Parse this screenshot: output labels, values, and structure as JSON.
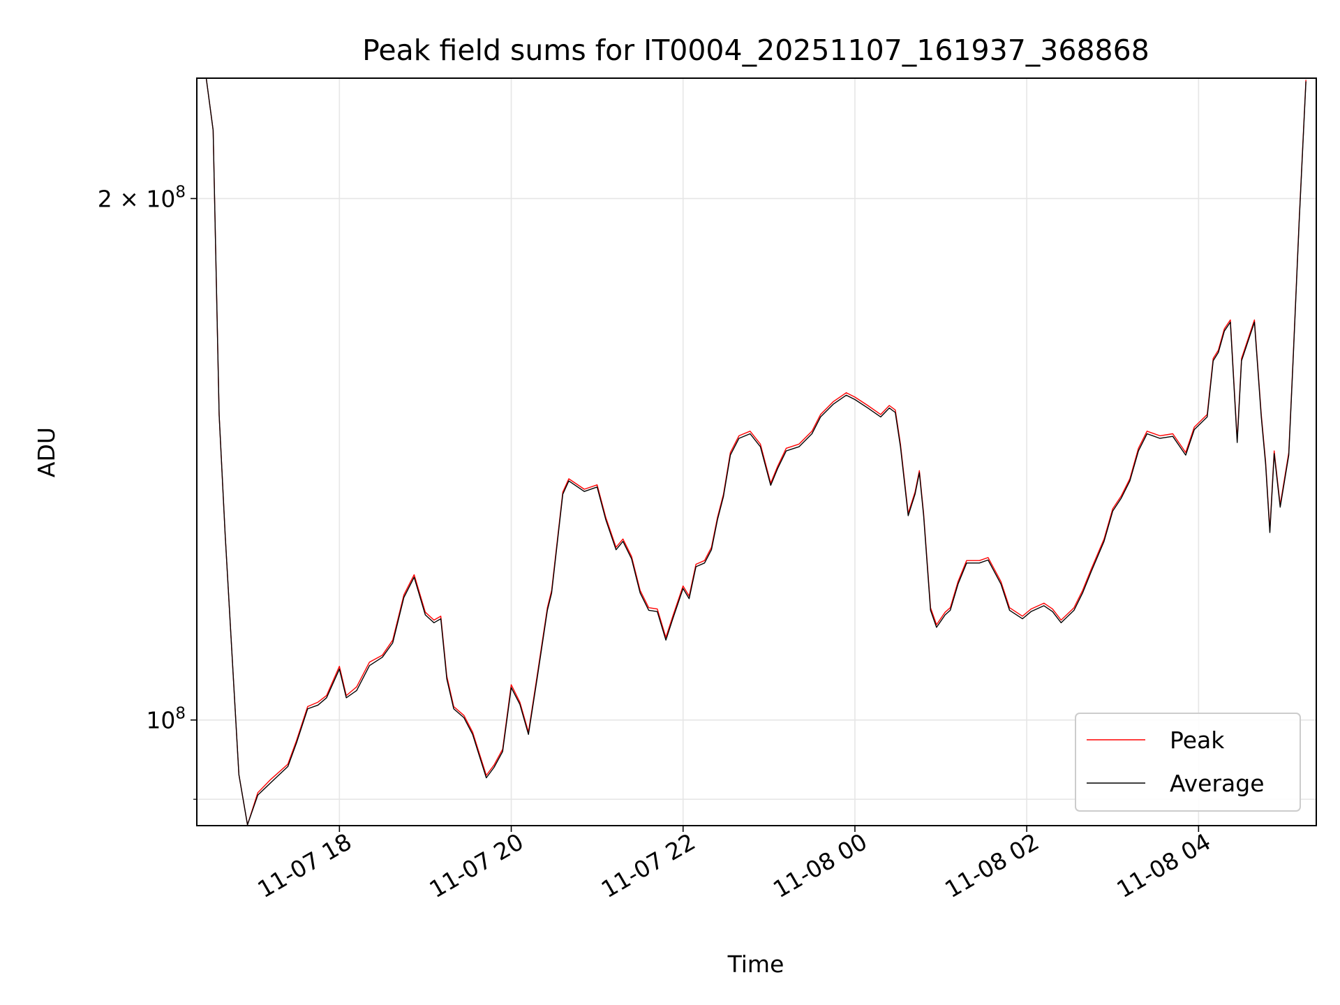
{
  "chart_data": {
    "type": "line",
    "title": "Peak field sums for IT0004_20251107_161937_368868",
    "xlabel": "Time",
    "ylabel": "ADU",
    "x_units": "hours since 11-07 00:00",
    "y_units": "millions of ADU",
    "y_scale": "log",
    "xlim": [
      16.34,
      29.37
    ],
    "ylim": [
      86.9,
      234.7
    ],
    "grid": true,
    "legend_position": "bottom-right",
    "x_ticks": [
      {
        "value": 18,
        "label": "11-07 18"
      },
      {
        "value": 20,
        "label": "11-07 20"
      },
      {
        "value": 22,
        "label": "11-07 22"
      },
      {
        "value": 24,
        "label": "11-08 00"
      },
      {
        "value": 26,
        "label": "11-08 02"
      },
      {
        "value": 28,
        "label": "11-08 04"
      }
    ],
    "y_ticks": [
      {
        "value": 200,
        "label_base": "2 × 10",
        "label_exp": "8"
      },
      {
        "value": 100,
        "label_base": "10",
        "label_exp": "8"
      }
    ],
    "y_minor_ticks": [
      90
    ],
    "x": [
      16.45,
      16.53,
      16.6,
      16.67,
      16.75,
      16.83,
      16.93,
      17.05,
      17.2,
      17.4,
      17.5,
      17.63,
      17.75,
      17.85,
      18.0,
      18.08,
      18.2,
      18.35,
      18.5,
      18.62,
      18.75,
      18.87,
      19.0,
      19.1,
      19.18,
      19.25,
      19.33,
      19.45,
      19.55,
      19.63,
      19.71,
      19.8,
      19.9,
      20.0,
      20.1,
      20.2,
      20.3,
      20.42,
      20.47,
      20.6,
      20.67,
      20.85,
      21.0,
      21.1,
      21.22,
      21.3,
      21.4,
      21.5,
      21.6,
      21.7,
      21.8,
      21.88,
      22.0,
      22.07,
      22.15,
      22.25,
      22.33,
      22.4,
      22.47,
      22.55,
      22.65,
      22.78,
      22.9,
      23.02,
      23.1,
      23.2,
      23.35,
      23.5,
      23.6,
      23.75,
      23.9,
      24.0,
      24.15,
      24.3,
      24.4,
      24.47,
      24.53,
      24.62,
      24.7,
      24.75,
      24.8,
      24.88,
      24.95,
      25.05,
      25.11,
      25.2,
      25.3,
      25.45,
      25.55,
      25.7,
      25.8,
      25.95,
      26.05,
      26.2,
      26.3,
      26.4,
      26.55,
      26.65,
      26.75,
      26.9,
      27.0,
      27.1,
      27.2,
      27.3,
      27.4,
      27.55,
      27.7,
      27.85,
      27.95,
      28.1,
      28.17,
      28.23,
      28.3,
      28.37,
      28.45,
      28.5,
      28.6,
      28.65,
      28.73,
      28.78,
      28.83,
      28.88,
      28.95,
      29.05,
      29.1,
      29.17,
      29.25
    ],
    "series": [
      {
        "name": "Peak",
        "color": "#ff0000",
        "values": [
          234.7,
          219,
          150,
          128,
          109,
          93,
          87,
          90.8,
          92.4,
          94.3,
          97.3,
          101.8,
          102.4,
          103.3,
          107.4,
          103.3,
          104.5,
          108,
          109,
          111.2,
          118.1,
          121.3,
          115.4,
          114.2,
          114.8,
          106,
          101.8,
          100.6,
          98.4,
          95.6,
          92.9,
          94.2,
          96.2,
          104.8,
          102.4,
          98.4,
          106,
          116.1,
          118.8,
          135.4,
          137.8,
          135.9,
          136.7,
          130.9,
          125.8,
          127.2,
          124.3,
          118.8,
          116.1,
          115.9,
          111.6,
          114.8,
          119.5,
          117.9,
          123,
          123.6,
          125.8,
          130.9,
          135,
          142.7,
          145.9,
          146.8,
          144.3,
          137,
          140.1,
          143.5,
          144.3,
          146.8,
          150.1,
          152.7,
          154.5,
          153.6,
          151.9,
          150.1,
          151.9,
          151,
          144.3,
          131.6,
          135.4,
          139.3,
          131.6,
          116.1,
          113.5,
          115.4,
          116.1,
          120.2,
          123.6,
          123.6,
          124.1,
          120.2,
          116.1,
          114.8,
          115.9,
          116.8,
          115.9,
          114.2,
          116.1,
          118.8,
          122.2,
          127.2,
          132.4,
          134.7,
          137.8,
          143.5,
          146.8,
          145.9,
          146.3,
          142.7,
          147.6,
          150.1,
          161.7,
          163.5,
          168.2,
          170.2,
          145.1,
          161.7,
          167.3,
          170.2,
          150.1,
          141,
          128.7,
          143,
          133.1,
          142.7,
          161.7,
          194,
          234.2
        ]
      },
      {
        "name": "Average",
        "color": "#000000",
        "values": [
          234.7,
          219,
          150,
          128,
          109,
          93,
          87,
          90.5,
          92,
          94,
          97,
          101.5,
          102,
          103,
          107,
          103,
          104,
          107.5,
          108.7,
          110.8,
          117.7,
          120.9,
          115,
          113.8,
          114.4,
          105.6,
          101.5,
          100.3,
          98.1,
          95.3,
          92.6,
          93.9,
          95.9,
          104.4,
          102.1,
          98.1,
          105.6,
          115.7,
          118.4,
          135,
          137.4,
          135.5,
          136.3,
          130.5,
          125.4,
          126.8,
          123.9,
          118.4,
          115.7,
          115.5,
          111.2,
          114.4,
          119.1,
          117.5,
          122.6,
          123.2,
          125.4,
          130.5,
          134.6,
          142.2,
          145.4,
          146.3,
          143.8,
          136.6,
          139.7,
          143,
          143.8,
          146.3,
          149.6,
          152.2,
          154,
          153.1,
          151.4,
          149.6,
          151.4,
          150.5,
          143.8,
          131.2,
          135,
          138.9,
          131.2,
          115.7,
          113.1,
          115,
          115.7,
          119.8,
          123.2,
          123.2,
          123.7,
          119.8,
          115.7,
          114.4,
          115.5,
          116.4,
          115.5,
          113.8,
          115.7,
          118.4,
          121.8,
          126.8,
          132,
          134.3,
          137.4,
          143,
          146.3,
          145.4,
          145.8,
          142.2,
          147.1,
          149.6,
          161.2,
          163,
          167.7,
          169.7,
          144.6,
          161.2,
          166.8,
          169.7,
          149.6,
          140.5,
          128.3,
          142.5,
          132.7,
          142.2,
          161.2,
          193.5,
          233.7
        ]
      }
    ]
  }
}
